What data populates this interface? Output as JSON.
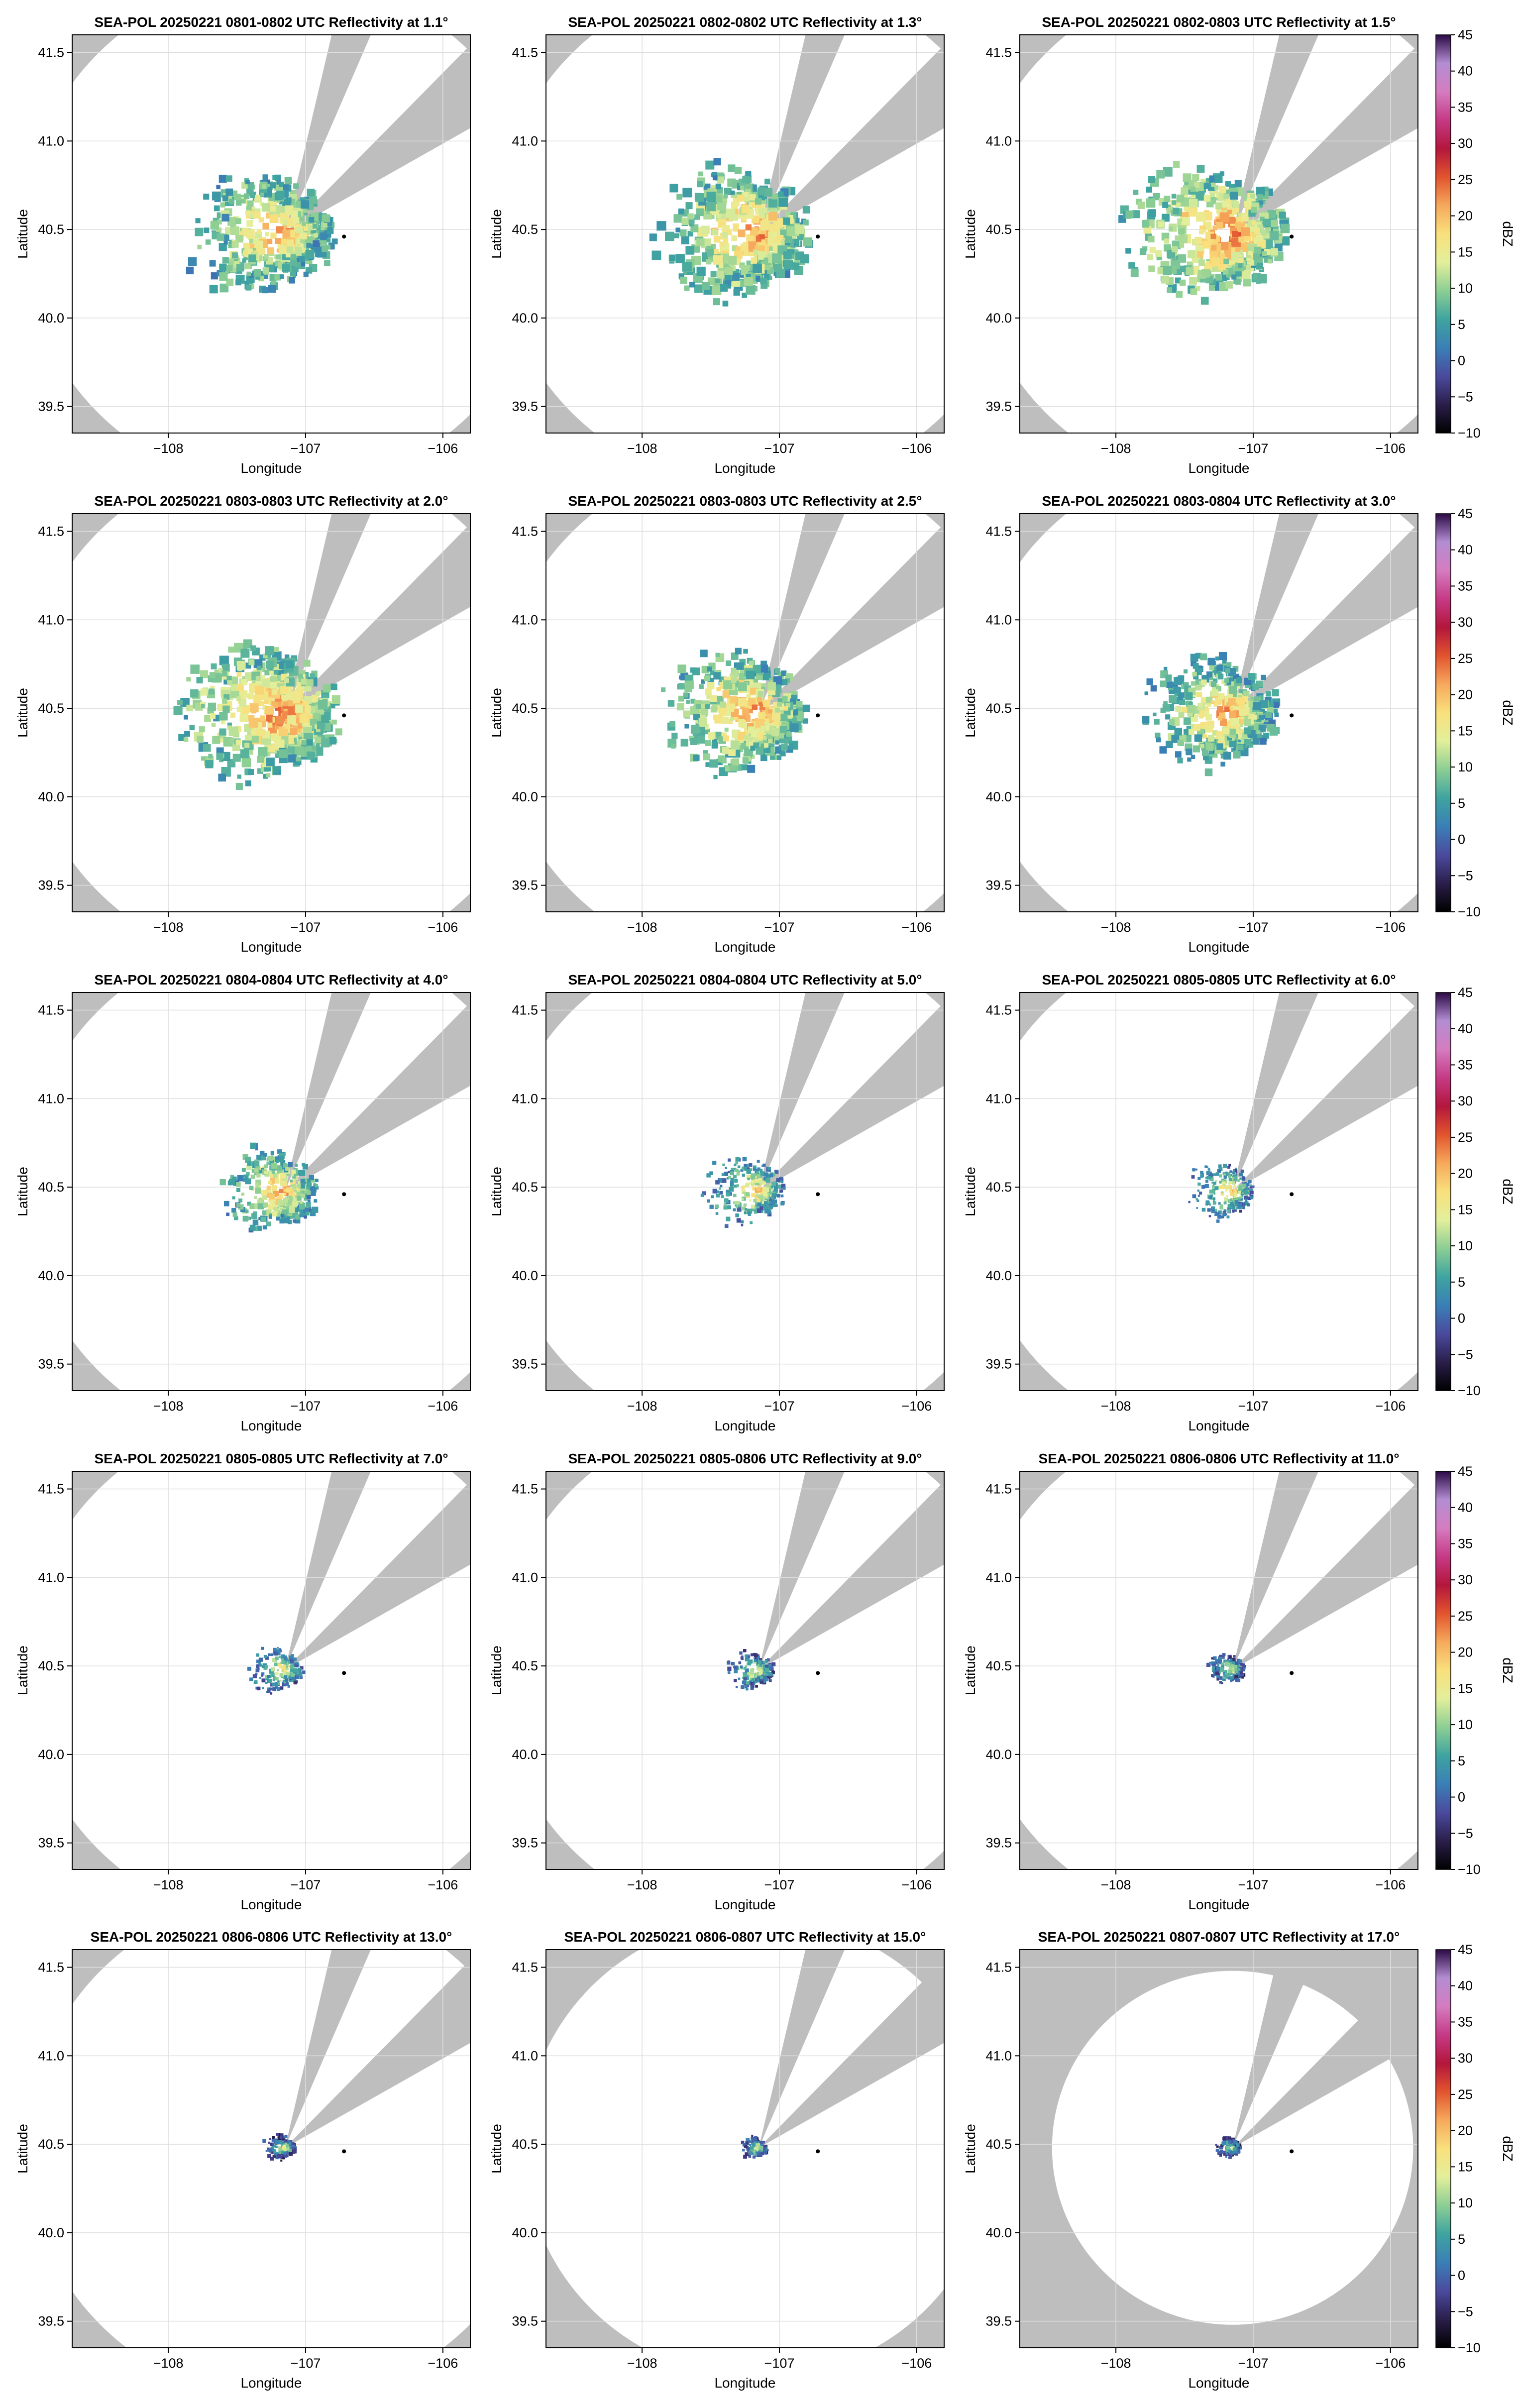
{
  "figure": {
    "xlabel": "Longitude",
    "ylabel": "Latitude",
    "xlim": [
      -108.7,
      -105.8
    ],
    "ylim": [
      39.35,
      41.6
    ],
    "xticks": [
      -108,
      -107,
      -106
    ],
    "xtick_labels": [
      "−108",
      "−107",
      "−106"
    ],
    "yticks": [
      39.5,
      40.0,
      40.5,
      41.0,
      41.5
    ],
    "ytick_labels": [
      "39.5",
      "40.0",
      "40.5",
      "41.0",
      "41.5"
    ],
    "radar_site": {
      "lon": -107.15,
      "lat": 40.48
    },
    "marker": {
      "lon": -106.72,
      "lat": 40.46
    },
    "blocked_sectors_deg": [
      [
        13,
        23
      ],
      [
        44,
        60
      ]
    ],
    "colors": {
      "no_coverage": "#bebebe",
      "coverage": "#ffffff",
      "grid": "#dedede"
    }
  },
  "colorbar": {
    "label": "dBZ",
    "min": -10,
    "max": 45,
    "ticks": [
      45,
      40,
      35,
      30,
      25,
      20,
      15,
      10,
      5,
      0,
      -5,
      -10
    ],
    "tick_labels": [
      "45",
      "40",
      "35",
      "30",
      "25",
      "20",
      "15",
      "10",
      "5",
      "0",
      "−5",
      "−10"
    ],
    "colors": [
      "#000000",
      "#2a1e4a",
      "#4b4a9e",
      "#3a7fb6",
      "#3fa4a0",
      "#8cce94",
      "#e3ef9b",
      "#f9e07c",
      "#f6a95c",
      "#e2542e",
      "#b4163c",
      "#c63a86",
      "#d57cc0",
      "#b38dd2",
      "#2b0a45"
    ]
  },
  "chart_data": [
    {
      "type": "heatmap",
      "title": "SEA-POL 20250221 0801-0802 UTC Reflectivity at 1.1°",
      "elevation_deg": 1.1,
      "coverage_range_deg": 1.45,
      "echo_extent_deg": 0.55,
      "typical_dbz": 12
    },
    {
      "type": "heatmap",
      "title": "SEA-POL 20250221 0802-0802 UTC Reflectivity at 1.3°",
      "elevation_deg": 1.3,
      "coverage_range_deg": 1.45,
      "echo_extent_deg": 0.58,
      "typical_dbz": 13
    },
    {
      "type": "heatmap",
      "title": "SEA-POL 20250221 0802-0803 UTC Reflectivity at 1.5°",
      "elevation_deg": 1.5,
      "coverage_range_deg": 1.45,
      "echo_extent_deg": 0.6,
      "typical_dbz": 14
    },
    {
      "type": "heatmap",
      "title": "SEA-POL 20250221 0803-0803 UTC Reflectivity at 2.0°",
      "elevation_deg": 2.0,
      "coverage_range_deg": 1.45,
      "echo_extent_deg": 0.6,
      "typical_dbz": 14
    },
    {
      "type": "heatmap",
      "title": "SEA-POL 20250221 0803-0803 UTC Reflectivity at 2.5°",
      "elevation_deg": 2.5,
      "coverage_range_deg": 1.45,
      "echo_extent_deg": 0.55,
      "typical_dbz": 13
    },
    {
      "type": "heatmap",
      "title": "SEA-POL 20250221 0803-0804 UTC Reflectivity at 3.0°",
      "elevation_deg": 3.0,
      "coverage_range_deg": 1.45,
      "echo_extent_deg": 0.5,
      "typical_dbz": 12
    },
    {
      "type": "heatmap",
      "title": "SEA-POL 20250221 0804-0804 UTC Reflectivity at 4.0°",
      "elevation_deg": 4.0,
      "coverage_range_deg": 1.45,
      "echo_extent_deg": 0.38,
      "typical_dbz": 11
    },
    {
      "type": "heatmap",
      "title": "SEA-POL 20250221 0804-0804 UTC Reflectivity at 5.0°",
      "elevation_deg": 5.0,
      "coverage_range_deg": 1.45,
      "echo_extent_deg": 0.3,
      "typical_dbz": 9
    },
    {
      "type": "heatmap",
      "title": "SEA-POL 20250221 0805-0805 UTC Reflectivity at 6.0°",
      "elevation_deg": 6.0,
      "coverage_range_deg": 1.45,
      "echo_extent_deg": 0.25,
      "typical_dbz": 8
    },
    {
      "type": "heatmap",
      "title": "SEA-POL 20250221 0805-0805 UTC Reflectivity at 7.0°",
      "elevation_deg": 7.0,
      "coverage_range_deg": 1.45,
      "echo_extent_deg": 0.2,
      "typical_dbz": 7
    },
    {
      "type": "heatmap",
      "title": "SEA-POL 20250221 0805-0806 UTC Reflectivity at 9.0°",
      "elevation_deg": 9.0,
      "coverage_range_deg": 1.45,
      "echo_extent_deg": 0.17,
      "typical_dbz": 6
    },
    {
      "type": "heatmap",
      "title": "SEA-POL 20250221 0806-0806 UTC Reflectivity at 11.0°",
      "elevation_deg": 11.0,
      "coverage_range_deg": 1.45,
      "echo_extent_deg": 0.14,
      "typical_dbz": 5
    },
    {
      "type": "heatmap",
      "title": "SEA-POL 20250221 0806-0806 UTC Reflectivity at 13.0°",
      "elevation_deg": 13.0,
      "coverage_range_deg": 1.43,
      "echo_extent_deg": 0.12,
      "typical_dbz": 4
    },
    {
      "type": "heatmap",
      "title": "SEA-POL 20250221 0806-0807 UTC Reflectivity at 15.0°",
      "elevation_deg": 15.0,
      "coverage_range_deg": 1.3,
      "echo_extent_deg": 0.1,
      "typical_dbz": 4
    },
    {
      "type": "heatmap",
      "title": "SEA-POL 20250221 0807-0807 UTC Reflectivity at 17.0°",
      "elevation_deg": 17.0,
      "coverage_range_deg": 1.0,
      "echo_extent_deg": 0.09,
      "typical_dbz": 3
    }
  ]
}
